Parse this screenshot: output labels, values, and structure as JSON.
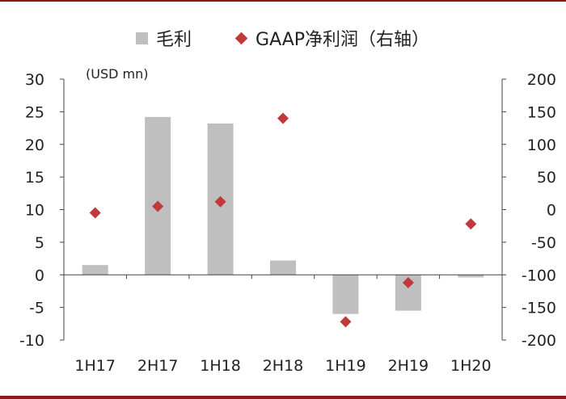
{
  "chart_data": {
    "type": "bar",
    "categories": [
      "1H17",
      "2H17",
      "1H18",
      "2H18",
      "1H19",
      "2H19",
      "1H20"
    ],
    "unit_label": "(USD mn)",
    "series": [
      {
        "name": "毛利",
        "kind": "bar",
        "axis": "left",
        "color": "#bfbfbf",
        "values": [
          1.5,
          24.2,
          23.2,
          2.2,
          -6.0,
          -5.5,
          -0.4
        ]
      },
      {
        "name": "GAAP净利润（右轴）",
        "kind": "scatter",
        "axis": "right",
        "color": "#c0393b",
        "values": [
          -5,
          5,
          12,
          140,
          -172,
          -112,
          -22
        ]
      }
    ],
    "y_left": {
      "min": -10,
      "max": 30,
      "ticks": [
        30,
        25,
        20,
        15,
        10,
        5,
        0,
        -5,
        -10
      ]
    },
    "y_right": {
      "min": -200,
      "max": 200,
      "ticks": [
        200,
        150,
        100,
        50,
        0,
        -50,
        -100,
        -150,
        -200
      ]
    }
  }
}
